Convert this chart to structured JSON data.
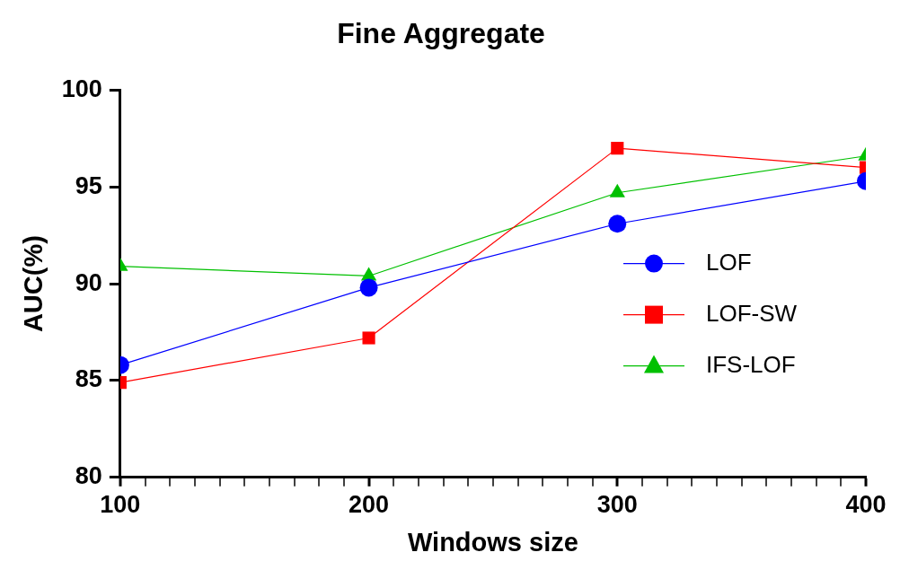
{
  "chart_data": {
    "type": "line",
    "title": "Fine Aggregate",
    "xlabel": "Windows size",
    "ylabel": "AUC(%)",
    "x": [
      100,
      200,
      300,
      400
    ],
    "series": [
      {
        "name": "LOF",
        "color": "#0000ff",
        "marker": "circle",
        "values": [
          85.8,
          89.8,
          93.1,
          95.3
        ]
      },
      {
        "name": "LOF-SW",
        "color": "#ff0000",
        "marker": "square",
        "values": [
          84.9,
          87.2,
          97.0,
          96.0
        ]
      },
      {
        "name": "IFS-LOF",
        "color": "#00c000",
        "marker": "triangle",
        "values": [
          90.9,
          90.4,
          94.7,
          96.6
        ]
      }
    ],
    "xlim": [
      100,
      400
    ],
    "xticks": [
      100,
      {
        "value": 110,
        "label": null
      },
      {
        "value": 120,
        "label": null
      },
      {
        "value": 130,
        "label": null
      },
      {
        "value": 140,
        "label": null
      },
      {
        "value": 150,
        "label": null
      },
      {
        "value": 160,
        "label": null
      },
      {
        "value": 170,
        "label": null
      },
      {
        "value": 180,
        "label": null
      },
      {
        "value": 190,
        "label": null
      },
      200,
      {
        "value": 210,
        "label": null
      },
      {
        "value": 220,
        "label": null
      },
      {
        "value": 230,
        "label": null
      },
      {
        "value": 240,
        "label": null
      },
      {
        "value": 250,
        "label": null
      },
      {
        "value": 260,
        "label": null
      },
      {
        "value": 270,
        "label": null
      },
      {
        "value": 280,
        "label": null
      },
      {
        "value": 290,
        "label": null
      },
      300,
      {
        "value": 310,
        "label": null
      },
      {
        "value": 320,
        "label": null
      },
      {
        "value": 330,
        "label": null
      },
      {
        "value": 340,
        "label": null
      },
      {
        "value": 350,
        "label": null
      },
      {
        "value": 360,
        "label": null
      },
      {
        "value": 370,
        "label": null
      },
      {
        "value": 380,
        "label": null
      },
      {
        "value": 390,
        "label": null
      },
      400
    ],
    "ylim": [
      80,
      100
    ],
    "yticks": [
      80,
      85,
      90,
      95,
      100
    ],
    "grid": false,
    "legend": "right"
  }
}
